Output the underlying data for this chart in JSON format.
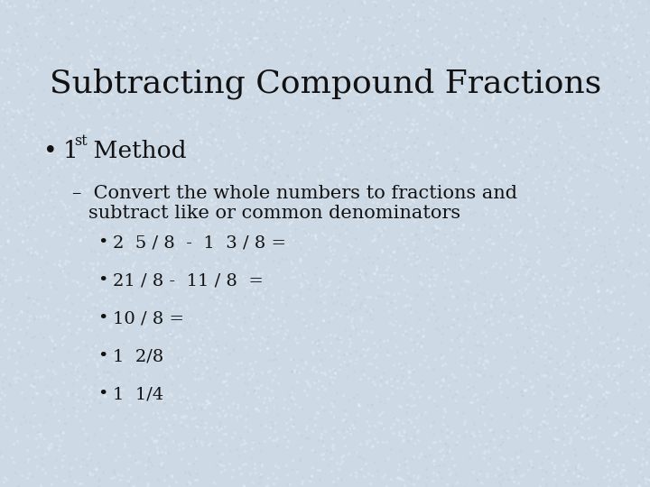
{
  "title": "Subtracting Compound Fractions",
  "background_color": "#cdd9e5",
  "text_color": "#111111",
  "title_fontsize": 26,
  "bullet1_fontsize": 19,
  "sub_bullet_fontsize": 15,
  "sub_item_fontsize": 14,
  "sub_items": [
    "2  5 / 8  -  1  3 / 8 =",
    "21 / 8 -  11 / 8  =",
    "10 / 8 =",
    "1  2/8",
    "1  1/4"
  ]
}
